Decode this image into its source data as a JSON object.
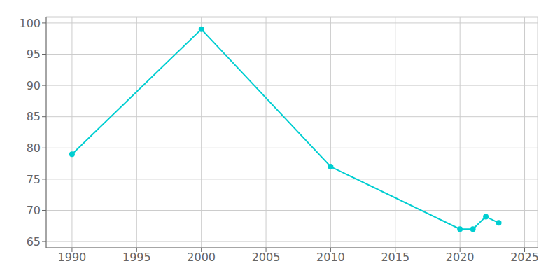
{
  "chart_data": {
    "type": "line",
    "x": [
      1990,
      2000,
      2010,
      2020,
      2021,
      2022,
      2023
    ],
    "values": [
      79,
      99,
      77,
      67,
      67,
      69,
      68
    ],
    "color": "#00CED1",
    "marker": "circle",
    "xlim": [
      1988,
      2026
    ],
    "ylim": [
      64,
      101
    ],
    "xticks": [
      1990,
      1995,
      2000,
      2005,
      2010,
      2015,
      2020,
      2025
    ],
    "yticks": [
      65,
      70,
      75,
      80,
      85,
      90,
      95,
      100
    ],
    "grid": true
  }
}
